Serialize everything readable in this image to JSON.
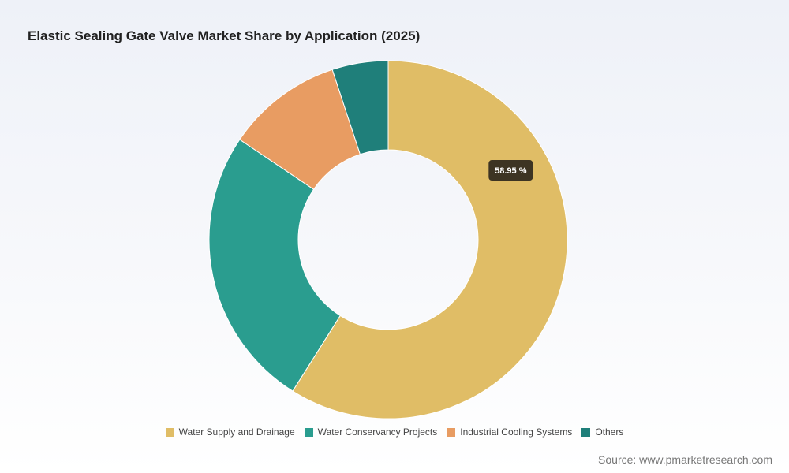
{
  "chart_data": {
    "type": "pie",
    "title": "Elastic Sealing Gate Valve Market Share by Application (2025)",
    "donut": true,
    "categories": [
      "Water Supply and Drainage",
      "Water Conservancy Projects",
      "Industrial Cooling Systems",
      "Others"
    ],
    "values": [
      58.95,
      25.5,
      10.5,
      5.05
    ],
    "colors": [
      "#e0bd66",
      "#2a9d8f",
      "#e89c62",
      "#1f7f7a"
    ],
    "data_labels": [
      "58.95 %",
      "",
      "",
      ""
    ],
    "legend_position": "bottom"
  },
  "source": "Source: www.pmarketresearch.com"
}
